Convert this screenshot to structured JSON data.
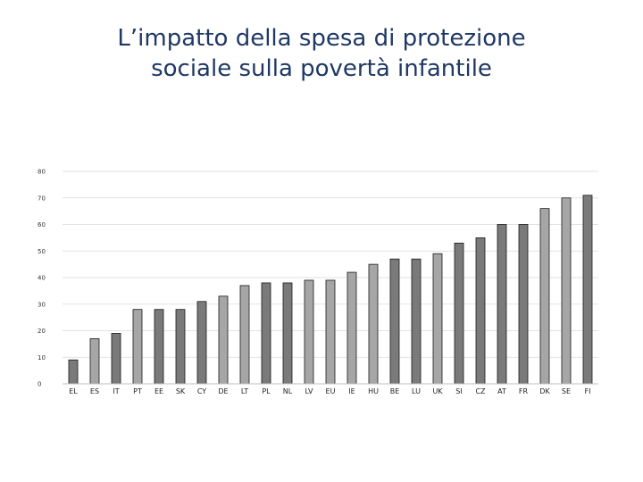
{
  "slide": {
    "title_line1": "L’impatto della spesa di protezione",
    "title_line2": "sociale sulla povertà infantile"
  },
  "colors": {
    "title": "#1f3864",
    "bar_dark": "#7a7a7a",
    "bar_light": "#a6a6a6",
    "bar_stroke": "#1a1a1a",
    "gridline": "#d9d9d9"
  },
  "chart_data": {
    "type": "bar",
    "title": "",
    "xlabel": "",
    "ylabel": "",
    "ylim": [
      0,
      80
    ],
    "yticks": [
      0,
      10,
      20,
      30,
      40,
      50,
      60,
      70,
      80
    ],
    "grid": true,
    "categories": [
      "EL",
      "ES",
      "IT",
      "PT",
      "EE",
      "SK",
      "CY",
      "DE",
      "LT",
      "PL",
      "NL",
      "LV",
      "EU",
      "IE",
      "HU",
      "BE",
      "LU",
      "UK",
      "SI",
      "CZ",
      "AT",
      "FR",
      "DK",
      "SE",
      "FI"
    ],
    "values": [
      9,
      17,
      19,
      28,
      28,
      28,
      31,
      33,
      37,
      38,
      38,
      39,
      39,
      42,
      45,
      47,
      47,
      49,
      53,
      55,
      60,
      60,
      66,
      70,
      71
    ],
    "highlight": [
      "dark",
      "light",
      "dark",
      "light",
      "dark",
      "dark",
      "dark",
      "light",
      "light",
      "dark",
      "dark",
      "light",
      "light",
      "light",
      "light",
      "dark",
      "dark",
      "light",
      "dark",
      "dark",
      "dark",
      "dark",
      "light",
      "light",
      "dark"
    ]
  }
}
